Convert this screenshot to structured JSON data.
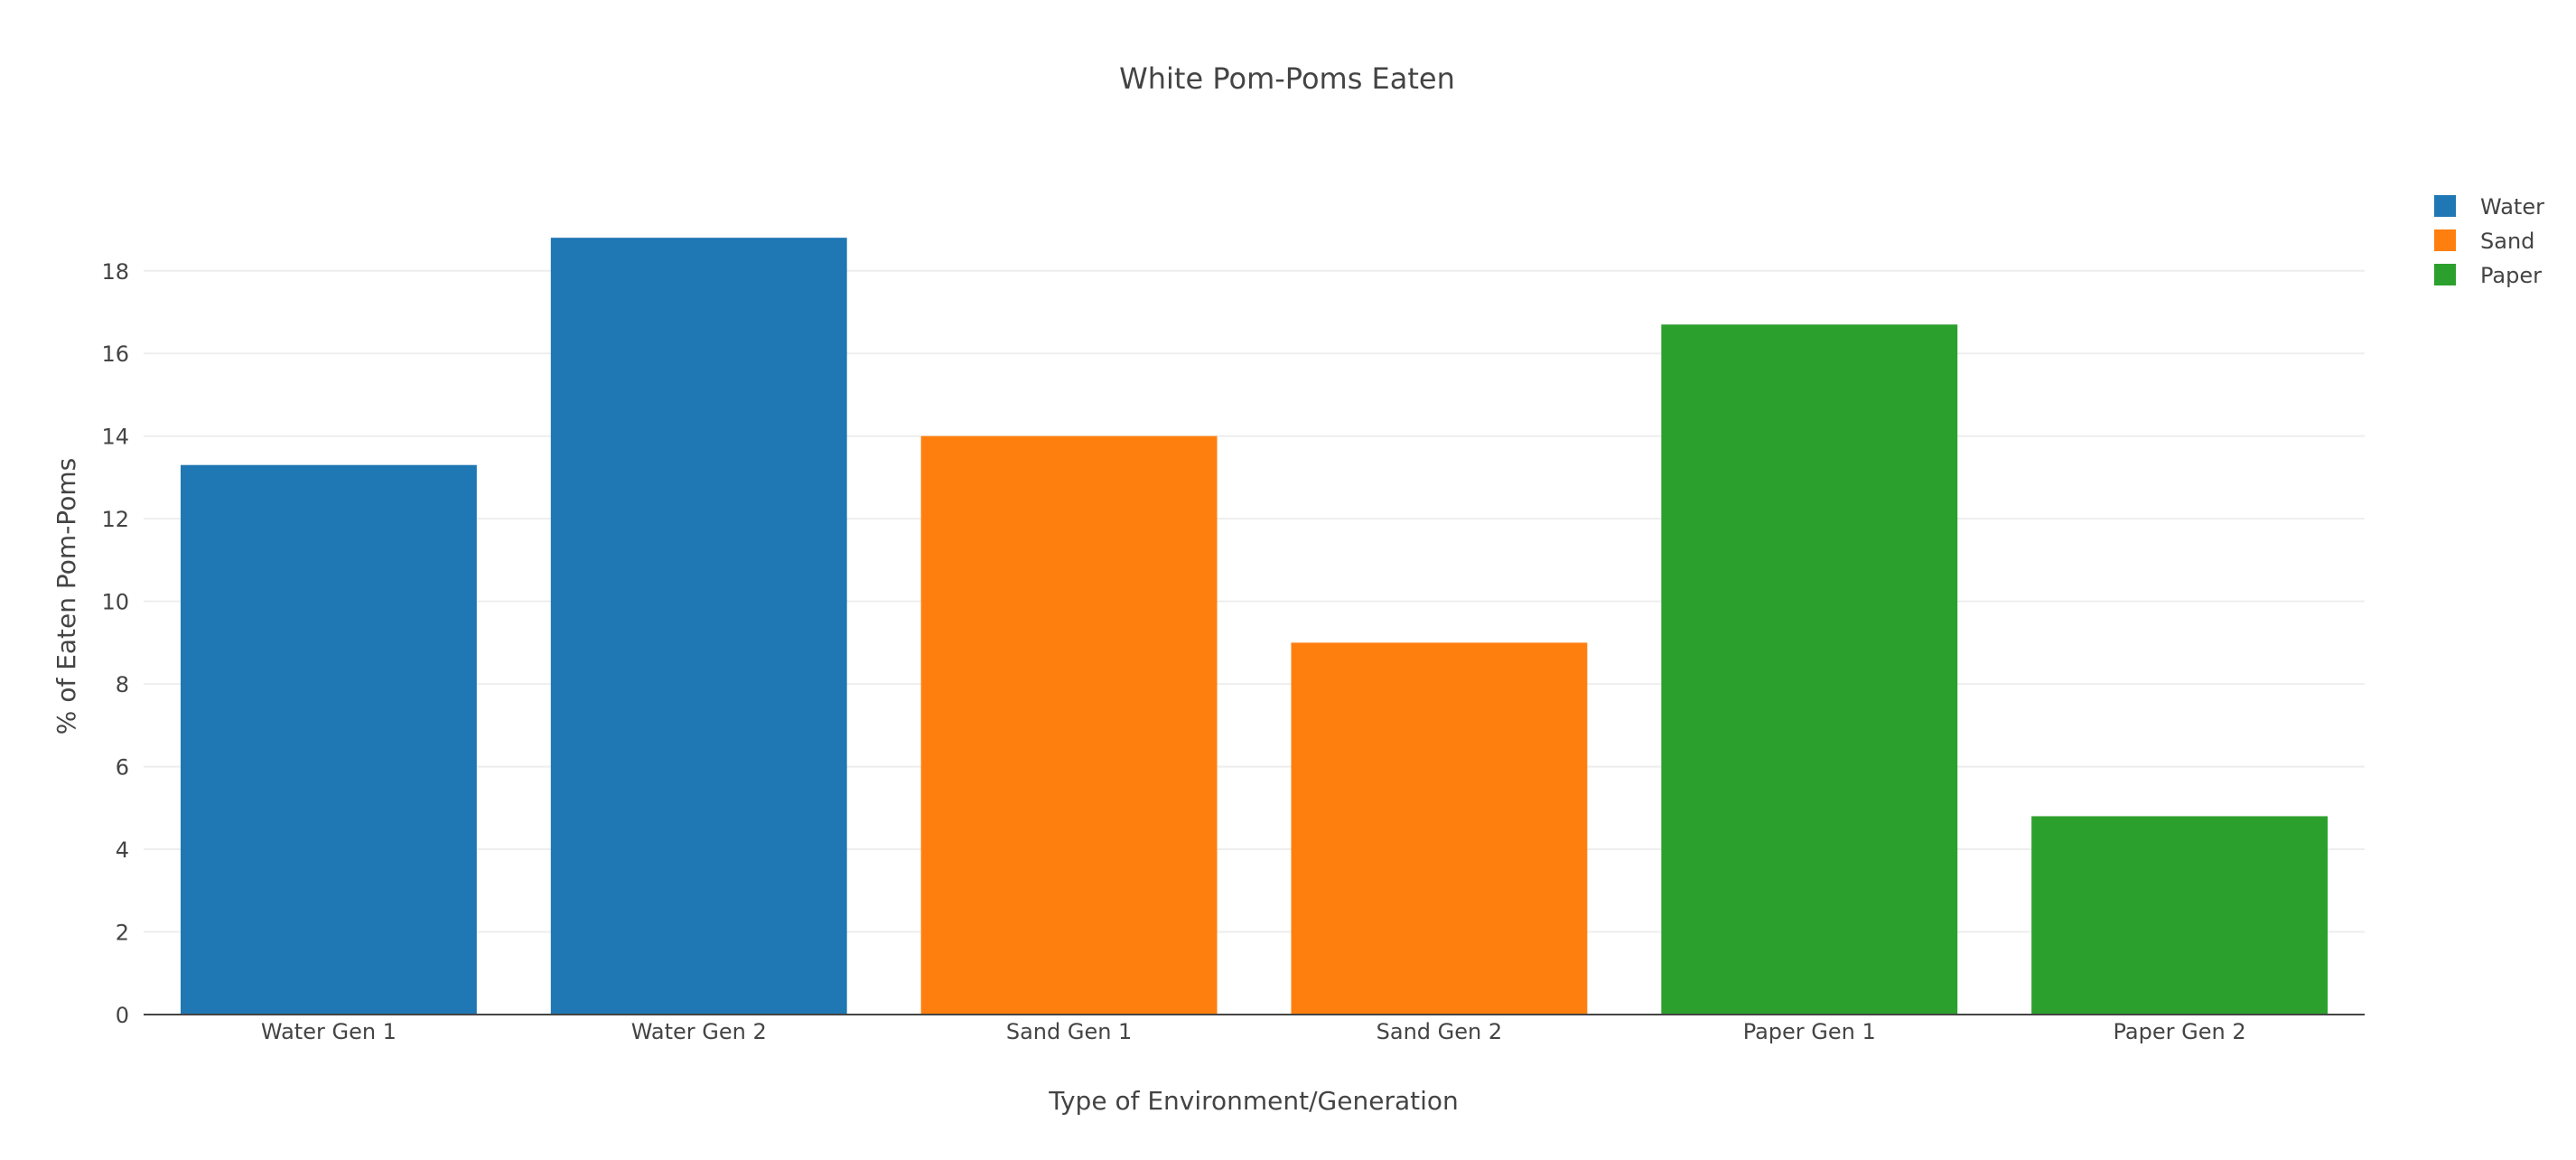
{
  "chart_data": {
    "type": "bar",
    "title": "White Pom-Poms Eaten",
    "xlabel": "Type of Environment/Generation",
    "ylabel": "% of Eaten Pom-Poms",
    "ylim": [
      0,
      19.7
    ],
    "yticks": [
      0,
      2,
      4,
      6,
      8,
      10,
      12,
      14,
      16,
      18
    ],
    "grid": true,
    "legend_position": "top-right",
    "categories": [
      "Water Gen 1",
      "Water Gen 2",
      "Sand Gen 1",
      "Sand Gen 2",
      "Paper Gen 1",
      "Paper Gen 2"
    ],
    "series": [
      {
        "name": "Water",
        "color": "#1f77b4",
        "x": [
          "Water Gen 1",
          "Water Gen 2"
        ],
        "values": [
          13.3,
          18.8
        ]
      },
      {
        "name": "Sand",
        "color": "#ff7f0e",
        "x": [
          "Sand Gen 1",
          "Sand Gen 2"
        ],
        "values": [
          14,
          9
        ]
      },
      {
        "name": "Paper",
        "color": "#2ca02c",
        "x": [
          "Paper Gen 1",
          "Paper Gen 2"
        ],
        "values": [
          16.7,
          4.8
        ]
      }
    ]
  }
}
